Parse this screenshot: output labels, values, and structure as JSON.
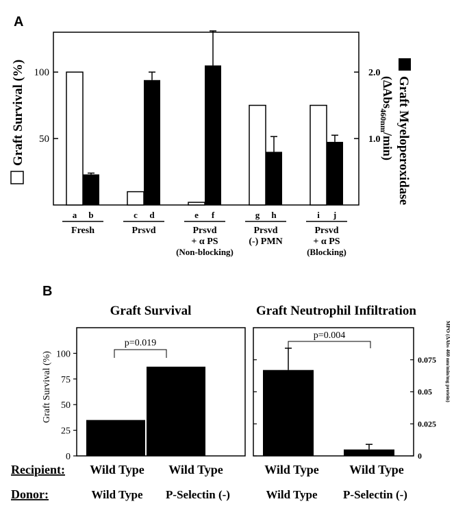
{
  "panel_a": {
    "label": "A",
    "y_left_title": "Graft Survival (%)",
    "y_right_title_main": "Graft Myeloperoxidase",
    "y_right_title_sub": "(ΔAbs",
    "y_right_title_sub2": "460nm",
    "y_right_title_sub3": "/min)"
  },
  "panel_b": {
    "label": "B",
    "left_title": "Graft Survival",
    "right_title": "Graft Neutrophil Infiltration",
    "left_ylabel": "Graft Survival (%)",
    "right_ylabel": "MPO (ΔAbs 460 nm/min/mg protein)",
    "left_pvalue": "p=0.019",
    "right_pvalue": "p=0.004",
    "recipient_label": "Recipient:",
    "donor_label": "Donor:",
    "recipient_left": "Wild Type",
    "recipient_right": "Wild Type",
    "donor_left": "Wild Type",
    "donor_right": "P-Selectin (-)",
    "recipient_left2": "Wild Type",
    "recipient_right2": "Wild Type",
    "donor_left2": "Wild Type",
    "donor_right2": "P-Selectin (-)"
  },
  "colors": {
    "open_bar": "#ffffff",
    "filled_bar": "#000000"
  },
  "chart_data": [
    {
      "type": "bar",
      "panel": "A",
      "groups": [
        {
          "label": "Fresh",
          "sub": "",
          "bar_letters": [
            "a",
            "b"
          ]
        },
        {
          "label": "Prsvd",
          "sub": "",
          "bar_letters": [
            "c",
            "d"
          ]
        },
        {
          "label": "Prsvd",
          "sub": "+ α PS",
          "sub2": "(Non-blocking)",
          "bar_letters": [
            "e",
            "f"
          ]
        },
        {
          "label": "Prsvd",
          "sub": "(-) PMN",
          "bar_letters": [
            "g",
            "h"
          ]
        },
        {
          "label": "Prsvd",
          "sub": "+ α PS",
          "sub2": "(Blocking)",
          "bar_letters": [
            "i",
            "j"
          ]
        }
      ],
      "series": [
        {
          "axis": "left",
          "style": "open",
          "values": [
            100,
            10,
            2,
            75,
            75
          ],
          "errors": [
            0,
            0,
            0,
            0,
            0
          ]
        },
        {
          "axis": "right",
          "style": "filled",
          "values": [
            0.46,
            1.88,
            2.1,
            0.8,
            0.95
          ],
          "errors": [
            0.02,
            0.12,
            0.52,
            0.23,
            0.1
          ]
        }
      ],
      "ylim_left": [
        0,
        130
      ],
      "yticks_left": [
        50,
        100
      ],
      "ylim_right": [
        0,
        2.6
      ],
      "yticks_right": [
        "1.0",
        "2.0"
      ]
    },
    {
      "type": "bar",
      "panel": "B-left",
      "categories": [
        "Wild Type",
        "P-Selectin (-)"
      ],
      "values": [
        35,
        87
      ],
      "ylim": [
        0,
        125
      ],
      "yticks": [
        0,
        25,
        50,
        75,
        100
      ]
    },
    {
      "type": "bar",
      "panel": "B-right",
      "categories": [
        "Wild Type",
        "P-Selectin (-)"
      ],
      "values": [
        0.067,
        0.005
      ],
      "errors": [
        0.017,
        0.004
      ],
      "ylim": [
        0,
        0.1
      ],
      "yticks": [
        "0",
        "0.025",
        "0.05",
        "0.075"
      ]
    }
  ]
}
